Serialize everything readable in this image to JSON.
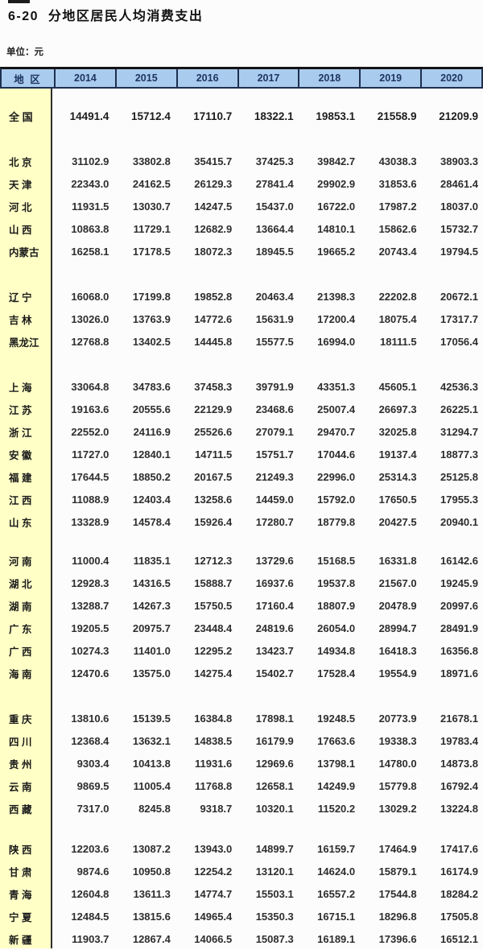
{
  "title": "6-20  分地区居民人均消费支出",
  "unit_label": "单位：元",
  "colors": {
    "header_bg": "#a9cbee",
    "header_text": "#1e3560",
    "border_dark": "#1f3050",
    "region_col_bg": "#ffffc6",
    "text": "#2f2f2f"
  },
  "table": {
    "region_header": "地 区",
    "years": [
      "2014",
      "2015",
      "2016",
      "2017",
      "2018",
      "2019",
      "2020"
    ],
    "groups": [
      {
        "rows": [
          {
            "region": "全 国",
            "emphasis": true,
            "values": [
              "14491.4",
              "15712.4",
              "17110.7",
              "18322.1",
              "19853.1",
              "21558.9",
              "21209.9"
            ]
          }
        ]
      },
      {
        "rows": [
          {
            "region": "北 京",
            "values": [
              "31102.9",
              "33802.8",
              "35415.7",
              "37425.3",
              "39842.7",
              "43038.3",
              "38903.3"
            ]
          },
          {
            "region": "天 津",
            "values": [
              "22343.0",
              "24162.5",
              "26129.3",
              "27841.4",
              "29902.9",
              "31853.6",
              "28461.4"
            ]
          },
          {
            "region": "河 北",
            "values": [
              "11931.5",
              "13030.7",
              "14247.5",
              "15437.0",
              "16722.0",
              "17987.2",
              "18037.0"
            ]
          },
          {
            "region": "山 西",
            "values": [
              "10863.8",
              "11729.1",
              "12682.9",
              "13664.4",
              "14810.1",
              "15862.6",
              "15732.7"
            ]
          },
          {
            "region": "内蒙古",
            "values": [
              "16258.1",
              "17178.5",
              "18072.3",
              "18945.5",
              "19665.2",
              "20743.4",
              "19794.5"
            ]
          }
        ]
      },
      {
        "rows": [
          {
            "region": "辽 宁",
            "values": [
              "16068.0",
              "17199.8",
              "19852.8",
              "20463.4",
              "21398.3",
              "22202.8",
              "20672.1"
            ]
          },
          {
            "region": "吉 林",
            "values": [
              "13026.0",
              "13763.9",
              "14772.6",
              "15631.9",
              "17200.4",
              "18075.4",
              "17317.7"
            ]
          },
          {
            "region": "黑龙江",
            "values": [
              "12768.8",
              "13402.5",
              "14445.8",
              "15577.5",
              "16994.0",
              "18111.5",
              "17056.4"
            ]
          }
        ]
      },
      {
        "rows": [
          {
            "region": "上 海",
            "values": [
              "33064.8",
              "34783.6",
              "37458.3",
              "39791.9",
              "43351.3",
              "45605.1",
              "42536.3"
            ]
          },
          {
            "region": "江 苏",
            "values": [
              "19163.6",
              "20555.6",
              "22129.9",
              "23468.6",
              "25007.4",
              "26697.3",
              "26225.1"
            ]
          },
          {
            "region": "浙 江",
            "values": [
              "22552.0",
              "24116.9",
              "25526.6",
              "27079.1",
              "29470.7",
              "32025.8",
              "31294.7"
            ]
          },
          {
            "region": "安 徽",
            "values": [
              "11727.0",
              "12840.1",
              "14711.5",
              "15751.7",
              "17044.6",
              "19137.4",
              "18877.3"
            ]
          },
          {
            "region": "福 建",
            "values": [
              "17644.5",
              "18850.2",
              "20167.5",
              "21249.3",
              "22996.0",
              "25314.3",
              "25125.8"
            ]
          },
          {
            "region": "江 西",
            "values": [
              "11088.9",
              "12403.4",
              "13258.6",
              "14459.0",
              "15792.0",
              "17650.5",
              "17955.3"
            ]
          },
          {
            "region": "山 东",
            "values": [
              "13328.9",
              "14578.4",
              "15926.4",
              "17280.7",
              "18779.8",
              "20427.5",
              "20940.1"
            ]
          }
        ]
      },
      {
        "rows": [
          {
            "region": "河 南",
            "values": [
              "11000.4",
              "11835.1",
              "12712.3",
              "13729.6",
              "15168.5",
              "16331.8",
              "16142.6"
            ]
          },
          {
            "region": "湖 北",
            "values": [
              "12928.3",
              "14316.5",
              "15888.7",
              "16937.6",
              "19537.8",
              "21567.0",
              "19245.9"
            ]
          },
          {
            "region": "湖 南",
            "values": [
              "13288.7",
              "14267.3",
              "15750.5",
              "17160.4",
              "18807.9",
              "20478.9",
              "20997.6"
            ]
          },
          {
            "region": "广 东",
            "values": [
              "19205.5",
              "20975.7",
              "23448.4",
              "24819.6",
              "26054.0",
              "28994.7",
              "28491.9"
            ]
          },
          {
            "region": "广 西",
            "values": [
              "10274.3",
              "11401.0",
              "12295.2",
              "13423.7",
              "14934.8",
              "16418.3",
              "16356.8"
            ]
          },
          {
            "region": "海 南",
            "values": [
              "12470.6",
              "13575.0",
              "14275.4",
              "15402.7",
              "17528.4",
              "19554.9",
              "18971.6"
            ]
          }
        ]
      },
      {
        "rows": [
          {
            "region": "重 庆",
            "values": [
              "13810.6",
              "15139.5",
              "16384.8",
              "17898.1",
              "19248.5",
              "20773.9",
              "21678.1"
            ]
          },
          {
            "region": "四 川",
            "values": [
              "12368.4",
              "13632.1",
              "14838.5",
              "16179.9",
              "17663.6",
              "19338.3",
              "19783.4"
            ]
          },
          {
            "region": "贵 州",
            "values": [
              "9303.4",
              "10413.8",
              "11931.6",
              "12969.6",
              "13798.1",
              "14780.0",
              "14873.8"
            ]
          },
          {
            "region": "云 南",
            "values": [
              "9869.5",
              "11005.4",
              "11768.8",
              "12658.1",
              "14249.9",
              "15779.8",
              "16792.4"
            ]
          },
          {
            "region": "西 藏",
            "values": [
              "7317.0",
              "8245.8",
              "9318.7",
              "10320.1",
              "11520.2",
              "13029.2",
              "13224.8"
            ]
          }
        ]
      },
      {
        "rows": [
          {
            "region": "陕 西",
            "values": [
              "12203.6",
              "13087.2",
              "13943.0",
              "14899.7",
              "16159.7",
              "17464.9",
              "17417.6"
            ]
          },
          {
            "region": "甘 肃",
            "values": [
              "9874.6",
              "10950.8",
              "12254.2",
              "13120.1",
              "14624.0",
              "15879.1",
              "16174.9"
            ]
          },
          {
            "region": "青 海",
            "values": [
              "12604.8",
              "13611.3",
              "14774.7",
              "15503.1",
              "16557.2",
              "17544.8",
              "18284.2"
            ]
          },
          {
            "region": "宁 夏",
            "values": [
              "12484.5",
              "13815.6",
              "14965.4",
              "15350.3",
              "16715.1",
              "18296.8",
              "17505.8"
            ]
          },
          {
            "region": "新 疆",
            "values": [
              "11903.7",
              "12867.4",
              "14066.5",
              "15087.3",
              "16189.1",
              "17396.6",
              "16512.1"
            ]
          }
        ]
      }
    ]
  }
}
